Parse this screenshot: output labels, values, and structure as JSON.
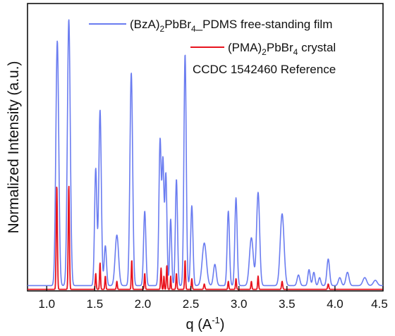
{
  "chart_data": {
    "type": "line",
    "xlabel_main": "q (A",
    "xlabel_sup": "-1",
    "xlabel_close": ")",
    "ylabel": "Normalized Intensity (a.u.)",
    "xlim": [
      0.8,
      4.5
    ],
    "ylim": [
      0,
      1.08
    ],
    "x_ticks": [
      "1.0",
      "1.5",
      "2.0",
      "2.5",
      "3.0",
      "3.5",
      "4.0",
      "4.5"
    ],
    "legend_position": "top-right",
    "legend": {
      "film": {
        "a": "(BzA)",
        "b": "2",
        "c": "PbBr",
        "d": "4",
        "e": "_PDMS free-standing film"
      },
      "crystal": {
        "a": "(PMA)",
        "b": "2",
        "c": "PbBr",
        "d": "4",
        "e": " crystal"
      },
      "reference": "CCDC 1542460 Reference"
    },
    "series": [
      {
        "key": "film",
        "color": "#6a7cf0",
        "baseline": 0.02,
        "peaks": [
          [
            1.11,
            0.92,
            0.015
          ],
          [
            1.23,
            1.0,
            0.015
          ],
          [
            1.51,
            0.44,
            0.012
          ],
          [
            1.555,
            0.66,
            0.013
          ],
          [
            1.61,
            0.15,
            0.012
          ],
          [
            1.73,
            0.19,
            0.018
          ],
          [
            1.88,
            0.8,
            0.014
          ],
          [
            2.02,
            0.28,
            0.012
          ],
          [
            2.18,
            0.55,
            0.012
          ],
          [
            2.21,
            0.45,
            0.01
          ],
          [
            2.24,
            0.42,
            0.011
          ],
          [
            2.29,
            0.25,
            0.01
          ],
          [
            2.35,
            0.4,
            0.011
          ],
          [
            2.44,
            0.87,
            0.012
          ],
          [
            2.51,
            0.3,
            0.012
          ],
          [
            2.64,
            0.16,
            0.022
          ],
          [
            2.75,
            0.08,
            0.015
          ],
          [
            2.89,
            0.28,
            0.012
          ],
          [
            2.97,
            0.33,
            0.012
          ],
          [
            3.13,
            0.18,
            0.02
          ],
          [
            3.2,
            0.35,
            0.016
          ],
          [
            3.45,
            0.27,
            0.02
          ],
          [
            3.62,
            0.04,
            0.014
          ],
          [
            3.73,
            0.06,
            0.012
          ],
          [
            3.78,
            0.05,
            0.012
          ],
          [
            3.84,
            0.03,
            0.012
          ],
          [
            3.93,
            0.1,
            0.014
          ],
          [
            4.05,
            0.03,
            0.015
          ],
          [
            4.13,
            0.05,
            0.016
          ],
          [
            4.31,
            0.03,
            0.02
          ],
          [
            4.42,
            0.02,
            0.02
          ]
        ]
      },
      {
        "key": "crystal",
        "color": "#e8131e",
        "baseline": 0.006,
        "peaks": [
          [
            1.105,
            0.39,
            0.006
          ],
          [
            1.23,
            0.39,
            0.006
          ],
          [
            1.51,
            0.06,
            0.005
          ],
          [
            1.555,
            0.1,
            0.005
          ],
          [
            1.61,
            0.05,
            0.005
          ],
          [
            1.73,
            0.03,
            0.005
          ],
          [
            1.885,
            0.11,
            0.005
          ],
          [
            2.02,
            0.06,
            0.005
          ],
          [
            2.19,
            0.08,
            0.005
          ],
          [
            2.22,
            0.05,
            0.004
          ],
          [
            2.25,
            0.09,
            0.005
          ],
          [
            2.29,
            0.05,
            0.004
          ],
          [
            2.35,
            0.06,
            0.005
          ],
          [
            2.44,
            0.11,
            0.005
          ],
          [
            2.51,
            0.04,
            0.005
          ],
          [
            2.64,
            0.02,
            0.006
          ],
          [
            2.89,
            0.03,
            0.005
          ],
          [
            2.97,
            0.04,
            0.005
          ],
          [
            3.13,
            0.03,
            0.005
          ],
          [
            3.2,
            0.05,
            0.005
          ],
          [
            3.45,
            0.03,
            0.006
          ],
          [
            3.93,
            0.02,
            0.006
          ]
        ]
      }
    ]
  }
}
